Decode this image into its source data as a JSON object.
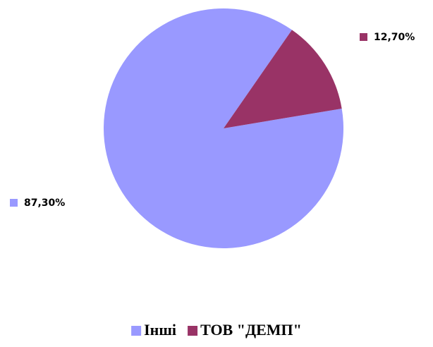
{
  "chart_data": {
    "type": "pie",
    "categories": [
      "Інші",
      "ТОВ \"ДЕМП\""
    ],
    "values": [
      87.3,
      12.7
    ],
    "value_labels": [
      "87,30%",
      "12,70%"
    ],
    "colors": [
      "#9999ff",
      "#993366"
    ],
    "legend": "bottom"
  }
}
